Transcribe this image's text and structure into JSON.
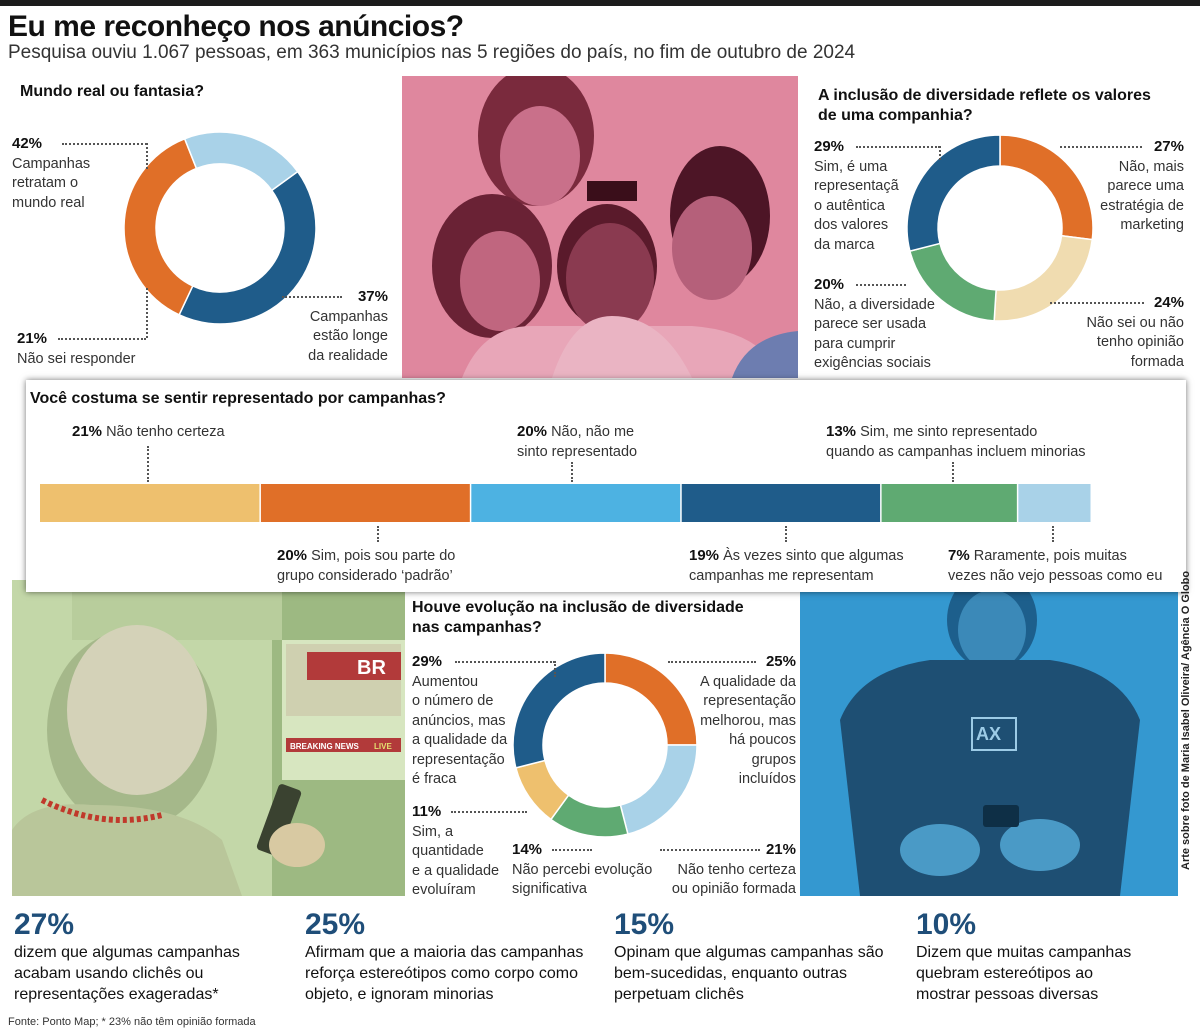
{
  "header": {
    "title": "Eu me reconheço nos anúncios?",
    "subtitle": "Pesquisa ouviu 1.067 pessoas, em 363 municípios nas 5 regiões do país, no fim de outubro de 2024"
  },
  "colors": {
    "dark_blue": "#1f5c8a",
    "orange": "#e06f28",
    "light_blue": "#a9d2e8",
    "sky_blue": "#4db2e2",
    "green": "#5faa72",
    "beige": "#f0dcb0",
    "sand": "#eec06e"
  },
  "chart_data": [
    {
      "type": "pie",
      "title": "Mundo real ou fantasia?",
      "slices": [
        {
          "pct": "42%",
          "value": 42,
          "label": "Campanhas retratam o mundo real",
          "color": "#1f5c8a"
        },
        {
          "pct": "37%",
          "value": 37,
          "label": "Campanhas estão longe da realidade",
          "color": "#e06f28"
        },
        {
          "pct": "21%",
          "value": 21,
          "label": "Não sei responder",
          "color": "#a9d2e8"
        }
      ]
    },
    {
      "type": "pie",
      "title": "A inclusão de diversidade reflete os valores de uma companhia?",
      "slices": [
        {
          "pct": "27%",
          "value": 27,
          "label": "Não, mais parece uma estratégia de marketing",
          "color": "#e06f28"
        },
        {
          "pct": "24%",
          "value": 24,
          "label": "Não sei ou não tenho opinião formada",
          "color": "#f0dcb0"
        },
        {
          "pct": "20%",
          "value": 20,
          "label": "Não, a diversidade parece ser usada para cumprir exigências sociais",
          "color": "#5faa72"
        },
        {
          "pct": "29%",
          "value": 29,
          "label": "Sim, é uma representação autêntica dos valores da marca",
          "color": "#1f5c8a"
        }
      ]
    },
    {
      "type": "bar",
      "title": "Você costuma se sentir representado por campanhas?",
      "segments": [
        {
          "pct": "21%",
          "value": 21,
          "label": "Não tenho certeza",
          "color": "#eec06e"
        },
        {
          "pct": "20%",
          "value": 20,
          "label": "Sim, pois sou parte do grupo considerado ‘padrão’",
          "color": "#e06f28"
        },
        {
          "pct": "20%",
          "value": 20,
          "label": "Não, não me sinto representado",
          "color": "#4db2e2"
        },
        {
          "pct": "19%",
          "value": 19,
          "label": "Às vezes sinto que algumas campanhas me representam",
          "color": "#1f5c8a"
        },
        {
          "pct": "13%",
          "value": 13,
          "label": "Sim, me sinto representado quando as campanhas incluem minorias",
          "color": "#5faa72"
        },
        {
          "pct": "7%",
          "value": 7,
          "label": "Raramente, pois muitas vezes não vejo pessoas como eu",
          "color": "#a9d2e8"
        }
      ]
    },
    {
      "type": "pie",
      "title": "Houve evolução na inclusão de diversidade nas campanhas?",
      "slices": [
        {
          "pct": "25%",
          "value": 25,
          "label": "A qualidade da representação melhorou, mas há poucos grupos incluídos",
          "color": "#e06f28"
        },
        {
          "pct": "21%",
          "value": 21,
          "label": "Não tenho certeza ou opinião formada",
          "color": "#a9d2e8"
        },
        {
          "pct": "14%",
          "value": 14,
          "label": "Não percebi evolução significativa",
          "color": "#5faa72"
        },
        {
          "pct": "11%",
          "value": 11,
          "label": "Sim, a quantidade e a qualidade evoluíram",
          "color": "#eec06e"
        },
        {
          "pct": "29%",
          "value": 29,
          "label": "Aumentou o número de anúncios, mas a qualidade da representação é fraca",
          "color": "#1f5c8a"
        }
      ]
    }
  ],
  "c1_text": {
    "a_pct": "42%",
    "a_lines": [
      "Campanhas",
      "retratam o",
      "mundo real"
    ],
    "b_pct": "37%",
    "b_lines": [
      "Campanhas",
      "estão longe",
      "da realidade"
    ],
    "c_pct": "21%",
    "c_line": "Não sei responder"
  },
  "c2_text": {
    "a_pct": "29%",
    "a_lines": [
      "Sim, é uma",
      "representaçã",
      "o autêntica",
      "dos valores",
      "da marca"
    ],
    "b_pct": "27%",
    "b_lines": [
      "Não, mais",
      "parece uma",
      "estratégia de",
      "marketing"
    ],
    "c_pct": "20%",
    "c_lines": [
      "Não, a diversidade",
      "parece ser usada",
      "para cumprir",
      "exigências sociais"
    ],
    "d_pct": "24%",
    "d_lines": [
      "Não sei ou não",
      "tenho opinião",
      "formada"
    ]
  },
  "c3_text": {
    "a_pct": "21%",
    "a_line": "Não tenho certeza",
    "b_pct": "20%",
    "b_lines": [
      "Não, não me",
      "sinto representado"
    ],
    "c_pct": "13%",
    "c_lines": [
      "Sim, me sinto representado",
      "quando as campanhas incluem minorias"
    ],
    "d_pct": "20%",
    "d_lines": [
      "Sim, pois sou parte do",
      "grupo considerado ‘padrão’"
    ],
    "e_pct": "19%",
    "e_lines": [
      "Às vezes sinto que algumas",
      "campanhas me representam"
    ],
    "f_pct": "7%",
    "f_lines": [
      "Raramente, pois muitas",
      "vezes não vejo pessoas como eu"
    ]
  },
  "c4_text": {
    "a_pct": "29%",
    "a_lines": [
      "Aumentou",
      "o número de",
      "anúncios, mas",
      "a qualidade da",
      "representação",
      "é fraca"
    ],
    "b_pct": "25%",
    "b_lines": [
      "A qualidade da",
      "representação",
      "melhorou, mas",
      "há poucos",
      "grupos",
      "incluídos"
    ],
    "c_pct": "11%",
    "c_lines": [
      "Sim, a",
      "quantidade",
      "e a qualidade",
      "evoluíram"
    ],
    "d_pct": "14%",
    "d_lines": [
      "Não percebi evolução",
      "significativa"
    ],
    "e_pct": "21%",
    "e_lines": [
      "Não tenho certeza",
      "ou opinião formada"
    ]
  },
  "c4_title_lines": [
    "Houve evolução na inclusão de diversidade",
    "nas campanhas?"
  ],
  "c2_title_lines": [
    "A inclusão de diversidade reflete os valores",
    "de uma companhia?"
  ],
  "stats": [
    {
      "pct": "27%",
      "lines": [
        "dizem que algumas campanhas",
        "acabam usando clichês ou",
        "representações exageradas*"
      ]
    },
    {
      "pct": "25%",
      "lines": [
        "Afirmam que a maioria das campanhas",
        "reforça estereótipos como corpo como",
        "objeto, e ignoram minorias"
      ]
    },
    {
      "pct": "15%",
      "lines": [
        "Opinam que algumas campanhas são",
        "bem-sucedidas, enquanto outras",
        "perpetuam clichês"
      ]
    },
    {
      "pct": "10%",
      "lines": [
        "Dizem que muitas campanhas",
        "quebram estereótipos ao",
        "mostrar pessoas diversas"
      ]
    }
  ],
  "photo_text": {
    "tv_brand": "BR",
    "tv_news": "BREAKING NEWS",
    "tv_live": "LIVE",
    "shirt_logo": "AX"
  },
  "footer": {
    "source": "Fonte:  Ponto Map; * 23% não têm opinião formada",
    "credit": "Arte sobre foto de Maria Isabel Oliveira/ Agência O Globo"
  }
}
